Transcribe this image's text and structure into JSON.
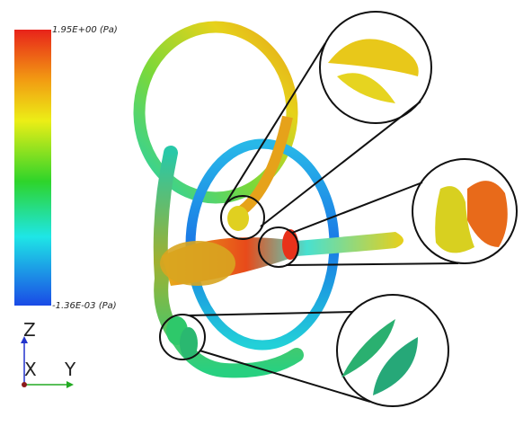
{
  "colorbar": {
    "max_label": "1.95E+00 (Pa)",
    "min_label": "-1.36E-03 (Pa)"
  },
  "axes": {
    "z": "Z",
    "x": "X",
    "y": "Y"
  }
}
